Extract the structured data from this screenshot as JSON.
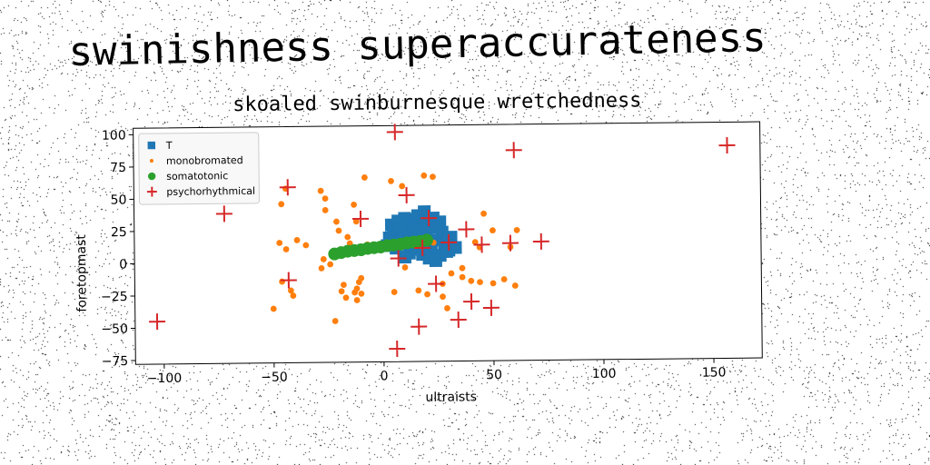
{
  "heading": "swinishness superaccurateness",
  "chart_data": {
    "type": "scatter",
    "title": "skoaled swinburnesque wretchedness",
    "xlabel": "ultraists",
    "ylabel": "foretopmast",
    "xlim": [
      -113,
      172
    ],
    "ylim": [
      -78,
      105
    ],
    "xticks": [
      -100,
      -50,
      0,
      50,
      100,
      150
    ],
    "yticks": [
      -75,
      -50,
      -25,
      0,
      25,
      50,
      75,
      100
    ],
    "grid": false,
    "legend_position": "top-left",
    "series": [
      {
        "name": "T",
        "marker": "square",
        "color": "#1f77b4",
        "points": [
          [
            4,
            28
          ],
          [
            7,
            31
          ],
          [
            10,
            33
          ],
          [
            12,
            29
          ],
          [
            15,
            32
          ],
          [
            18,
            34
          ],
          [
            21,
            30
          ],
          [
            23,
            33
          ],
          [
            5,
            22
          ],
          [
            8,
            25
          ],
          [
            11,
            20
          ],
          [
            14,
            24
          ],
          [
            17,
            27
          ],
          [
            20,
            23
          ],
          [
            24,
            26
          ],
          [
            27,
            22
          ],
          [
            9,
            15
          ],
          [
            13,
            12
          ],
          [
            16,
            18
          ],
          [
            19,
            14
          ],
          [
            22,
            10
          ],
          [
            25,
            16
          ],
          [
            28,
            12
          ],
          [
            30,
            8
          ],
          [
            12,
            6
          ],
          [
            15,
            9
          ],
          [
            18,
            5
          ],
          [
            21,
            2
          ],
          [
            26,
            4
          ],
          [
            29,
            7
          ],
          [
            10,
            3
          ],
          [
            6,
            10
          ],
          [
            3,
            18
          ],
          [
            31,
            18
          ],
          [
            33,
            10
          ],
          [
            26,
            30
          ],
          [
            16,
            35
          ],
          [
            19,
            38
          ],
          [
            2,
            12
          ],
          [
            24,
            0
          ]
        ]
      },
      {
        "name": "monobromated",
        "marker": "circle-small",
        "color": "#ff7f0e",
        "points": [
          [
            -8,
            65
          ],
          [
            4,
            62
          ],
          [
            9,
            58
          ],
          [
            19,
            66
          ],
          [
            23,
            65
          ],
          [
            -44,
            57
          ],
          [
            -28,
            55
          ],
          [
            -26,
            49
          ],
          [
            -46,
            45
          ],
          [
            -26,
            40
          ],
          [
            -13,
            44
          ],
          [
            -12,
            31
          ],
          [
            -21,
            31
          ],
          [
            -39,
            17
          ],
          [
            -47,
            15
          ],
          [
            -44,
            10
          ],
          [
            -35,
            13
          ],
          [
            -27,
            2
          ],
          [
            -20,
            24
          ],
          [
            -16,
            19
          ],
          [
            -15,
            14
          ],
          [
            -7,
            13
          ],
          [
            4,
            13
          ],
          [
            46,
            36
          ],
          [
            50,
            23
          ],
          [
            61,
            23
          ],
          [
            42,
            14
          ],
          [
            44,
            10
          ],
          [
            58,
            10
          ],
          [
            31,
            -10
          ],
          [
            36,
            -13
          ],
          [
            40,
            -16
          ],
          [
            44,
            -17
          ],
          [
            50,
            -18
          ],
          [
            55,
            -15
          ],
          [
            60,
            -20
          ],
          [
            27,
            -18
          ],
          [
            -10,
            -13
          ],
          [
            -11,
            -16
          ],
          [
            -12,
            -21
          ],
          [
            -13,
            -24
          ],
          [
            -18,
            -18
          ],
          [
            -17,
            -28
          ],
          [
            -19,
            -23
          ],
          [
            -22,
            -46
          ],
          [
            -42,
            -22
          ],
          [
            -46,
            -15
          ],
          [
            -50,
            -36
          ],
          [
            -41,
            -26
          ],
          [
            -10,
            -25
          ],
          [
            5,
            -24
          ],
          [
            16,
            -23
          ],
          [
            20,
            -26
          ],
          [
            27,
            -28
          ],
          [
            29,
            -37
          ],
          [
            -12,
            -30
          ],
          [
            -28,
            -5
          ],
          [
            -24,
            -2
          ],
          [
            23,
            14
          ],
          [
            10,
            -5
          ],
          [
            36,
            -6
          ]
        ]
      },
      {
        "name": "somatotonic",
        "marker": "circle-large",
        "color": "#2ca02c",
        "points": [
          [
            -22,
            6
          ],
          [
            -19,
            7
          ],
          [
            -16,
            8
          ],
          [
            -13,
            8.5
          ],
          [
            -10,
            9
          ],
          [
            -7,
            10
          ],
          [
            -4,
            10.5
          ],
          [
            -1,
            11
          ],
          [
            2,
            12
          ],
          [
            5,
            12.5
          ],
          [
            8,
            13
          ],
          [
            11,
            14
          ],
          [
            14,
            14.5
          ],
          [
            17,
            15
          ],
          [
            20,
            16
          ]
        ]
      },
      {
        "name": "psychorhythmical",
        "marker": "plus",
        "color": "#d62728",
        "points": [
          [
            -103,
            -45
          ],
          [
            -72,
            38
          ],
          [
            -43,
            58
          ],
          [
            -43,
            -14
          ],
          [
            -10,
            33
          ],
          [
            6,
            100
          ],
          [
            11,
            51
          ],
          [
            21,
            33
          ],
          [
            30,
            14
          ],
          [
            38,
            24
          ],
          [
            45,
            12
          ],
          [
            58,
            13
          ],
          [
            72,
            14
          ],
          [
            60,
            85
          ],
          [
            157,
            87
          ],
          [
            7,
            2
          ],
          [
            18,
            10
          ],
          [
            24,
            -18
          ],
          [
            34,
            -46
          ],
          [
            40,
            -32
          ],
          [
            49,
            -37
          ],
          [
            16,
            -51
          ],
          [
            6,
            -68
          ]
        ]
      }
    ]
  }
}
